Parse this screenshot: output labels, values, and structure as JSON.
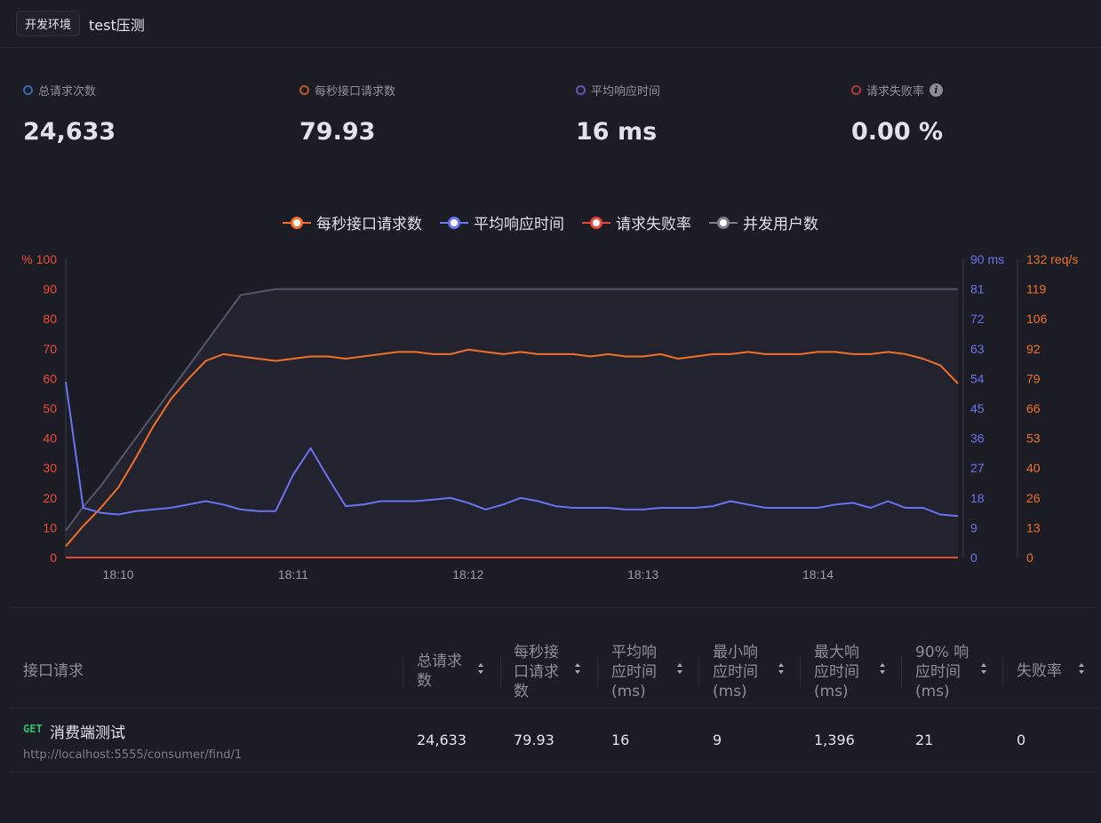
{
  "header": {
    "env_tag": "开发环境",
    "title": "test压测"
  },
  "stats": [
    {
      "label": "总请求次数",
      "value": "24,633",
      "color": "#3a66b0"
    },
    {
      "label": "每秒接口请求数",
      "value": "79.93",
      "color": "#b85a2a"
    },
    {
      "label": "平均响应时间",
      "value": "16 ms",
      "color": "#6655b0"
    },
    {
      "label": "请求失败率",
      "value": "0.00 %",
      "color": "#a83a3a",
      "info_icon": "info-icon"
    }
  ],
  "chart_data": {
    "type": "line",
    "legend": [
      {
        "name": "每秒接口请求数",
        "color": "#f0702a"
      },
      {
        "name": "平均响应时间",
        "color": "#6a73f0"
      },
      {
        "name": "请求失败率",
        "color": "#e84a3a"
      },
      {
        "name": "并发用户数",
        "color": "#7d7e88"
      }
    ],
    "legend_position": "top-center",
    "x": [
      "18:09:45",
      "18:09:51",
      "18:09:57",
      "18:10:03",
      "18:10:09",
      "18:10:15",
      "18:10:21",
      "18:10:27",
      "18:10:33",
      "18:10:39",
      "18:10:45",
      "18:10:51",
      "18:10:57",
      "18:11:03",
      "18:11:09",
      "18:11:15",
      "18:11:21",
      "18:11:27",
      "18:11:33",
      "18:11:39",
      "18:11:45",
      "18:11:51",
      "18:11:57",
      "18:12:03",
      "18:12:09",
      "18:12:15",
      "18:12:21",
      "18:12:27",
      "18:12:33",
      "18:12:39",
      "18:12:45",
      "18:12:51",
      "18:12:57",
      "18:13:03",
      "18:13:09",
      "18:13:15",
      "18:13:21",
      "18:13:27",
      "18:13:33",
      "18:13:39",
      "18:13:45",
      "18:13:51",
      "18:13:57",
      "18:14:03",
      "18:14:09",
      "18:14:15",
      "18:14:21",
      "18:14:27",
      "18:14:33",
      "18:14:39",
      "18:14:45",
      "18:14:51"
    ],
    "x_ticks": [
      "18:10",
      "18:11",
      "18:12",
      "18:13",
      "18:14"
    ],
    "axes": {
      "left": {
        "unit": "%",
        "ticks": [
          "0",
          "10",
          "20",
          "30",
          "40",
          "50",
          "60",
          "70",
          "80",
          "90",
          "100"
        ],
        "range": [
          0,
          100
        ],
        "color": "#f04a3a"
      },
      "right1": {
        "unit": "ms",
        "ticks": [
          "0",
          "9",
          "18",
          "27",
          "36",
          "45",
          "54",
          "63",
          "72",
          "81",
          "90"
        ],
        "range": [
          0,
          90
        ],
        "color": "#6a73f0"
      },
      "right2": {
        "unit": "req/s",
        "ticks": [
          "0",
          "13",
          "26",
          "40",
          "53",
          "66",
          "79",
          "92",
          "106",
          "119",
          "132"
        ],
        "range": [
          0,
          132
        ],
        "color": "#f0702a"
      }
    },
    "series": [
      {
        "name": "并发用户数",
        "axis": "left",
        "color": "#55566a",
        "values": [
          9,
          17,
          24,
          32,
          40,
          48,
          56,
          64,
          72,
          80,
          88,
          89,
          90,
          90,
          90,
          90,
          90,
          90,
          90,
          90,
          90,
          90,
          90,
          90,
          90,
          90,
          90,
          90,
          90,
          90,
          90,
          90,
          90,
          90,
          90,
          90,
          90,
          90,
          90,
          90,
          90,
          90,
          90,
          90,
          90,
          90,
          90,
          90,
          90,
          90,
          90,
          90
        ]
      },
      {
        "name": "每秒接口请求数",
        "axis": "right2",
        "color": "#f0702a",
        "values": [
          5,
          14,
          22,
          31,
          44,
          58,
          70,
          79,
          87,
          90,
          89,
          88,
          87,
          88,
          89,
          89,
          88,
          89,
          90,
          91,
          91,
          90,
          90,
          92,
          91,
          90,
          91,
          90,
          90,
          90,
          89,
          90,
          89,
          89,
          90,
          88,
          89,
          90,
          90,
          91,
          90,
          90,
          90,
          91,
          91,
          90,
          90,
          91,
          90,
          88,
          85,
          77
        ]
      },
      {
        "name": "平均响应时间",
        "axis": "right1",
        "color": "#6a73f0",
        "values": [
          53,
          15,
          13.5,
          13,
          14,
          14.5,
          15,
          16,
          17,
          16,
          14.5,
          14,
          14,
          25,
          33,
          24,
          15.5,
          16,
          17,
          17,
          17,
          17.5,
          18,
          16.5,
          14.5,
          16,
          18,
          17,
          15.5,
          15,
          15,
          15,
          14.5,
          14.5,
          15,
          15,
          15,
          15.5,
          17,
          16,
          15,
          15,
          15,
          15,
          16,
          16.5,
          15,
          17,
          15,
          15,
          13,
          12.5
        ]
      },
      {
        "name": "请求失败率",
        "axis": "left",
        "color": "#e84a3a",
        "values": [
          0,
          0,
          0,
          0,
          0,
          0,
          0,
          0,
          0,
          0,
          0,
          0,
          0,
          0,
          0,
          0,
          0,
          0,
          0,
          0,
          0,
          0,
          0,
          0,
          0,
          0,
          0,
          0,
          0,
          0,
          0,
          0,
          0,
          0,
          0,
          0,
          0,
          0,
          0,
          0,
          0,
          0,
          0,
          0,
          0,
          0,
          0,
          0,
          0,
          0,
          0,
          0
        ]
      }
    ]
  },
  "table": {
    "headers": [
      {
        "label": "接口请求",
        "lines": [
          "接口请求"
        ],
        "sortable": false
      },
      {
        "label": "总请求数",
        "lines": [
          "总请求",
          "数"
        ],
        "sortable": true
      },
      {
        "label": "每秒接口请求数",
        "lines": [
          "每秒接",
          "口请求",
          "数"
        ],
        "sortable": true
      },
      {
        "label": "平均响应时间(ms)",
        "lines": [
          "平均响",
          "应时间",
          "(ms)"
        ],
        "sortable": true
      },
      {
        "label": "最小响应时间(ms)",
        "lines": [
          "最小响",
          "应时间",
          "(ms)"
        ],
        "sortable": true
      },
      {
        "label": "最大响应时间(ms)",
        "lines": [
          "最大响",
          "应时间",
          "(ms)"
        ],
        "sortable": true
      },
      {
        "label": "90% 响应时间(ms)",
        "lines": [
          "90% 响",
          "应时间",
          "(ms)"
        ],
        "sortable": true
      },
      {
        "label": "失败率",
        "lines": [
          "失败率"
        ],
        "sortable": true
      }
    ],
    "rows": [
      {
        "method": "GET",
        "name": "消费端测试",
        "url": "http://localhost:5555/consumer/find/1",
        "total": "24,633",
        "rps": "79.93",
        "avg": "16",
        "min": "9",
        "max": "1,396",
        "p90": "21",
        "fail": "0"
      }
    ]
  }
}
